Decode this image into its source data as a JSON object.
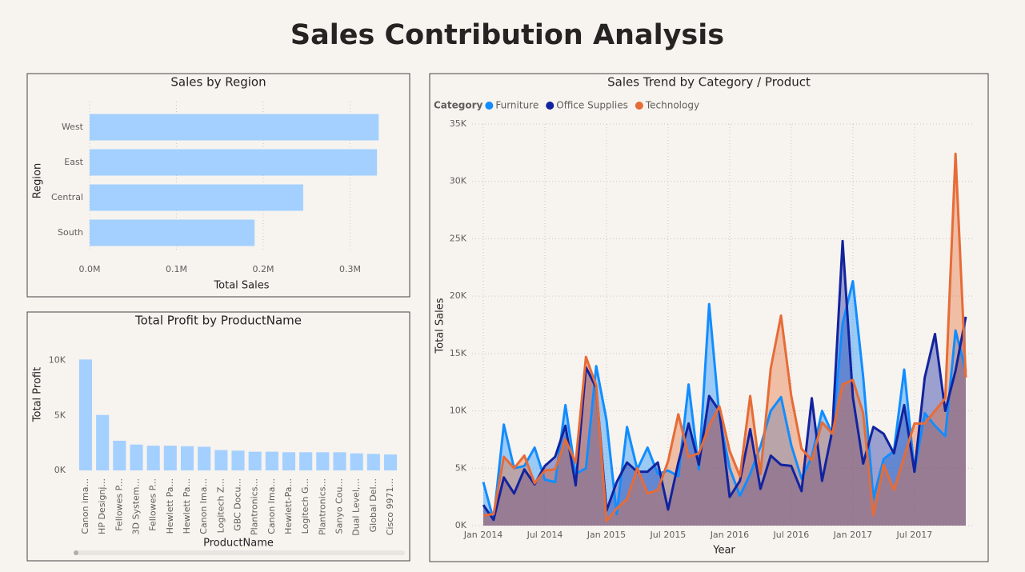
{
  "title": "Sales Contribution Analysis",
  "chart_data": [
    {
      "type": "bar",
      "orientation": "horizontal",
      "title": "Sales by Region",
      "x_label": "Total Sales",
      "y_label": "Region",
      "categories": [
        "West",
        "East",
        "Central",
        "South"
      ],
      "values": [
        333000,
        331000,
        246000,
        190000
      ],
      "color": "#a3d0ff",
      "grid": true,
      "xlim": [
        0,
        360000
      ],
      "xticks": [
        {
          "value": 0,
          "label": "0.0M"
        },
        {
          "value": 100000,
          "label": "0.1M"
        },
        {
          "value": 200000,
          "label": "0.2M"
        },
        {
          "value": 300000,
          "label": "0.3M"
        }
      ]
    },
    {
      "type": "bar",
      "orientation": "vertical",
      "title": "Total Profit by ProductName",
      "x_label": "ProductName",
      "y_label": "Total Profit",
      "categories": [
        "Canon ima...",
        "HP Designj...",
        "Fellowes P...",
        "3D System...",
        "Fellowes P...",
        "Hewlett Pa...",
        "Hewlett Pa...",
        "Canon Ima...",
        "Logitech Z...",
        "GBC Docu...",
        "Plantronics...",
        "Canon Ima...",
        "Hewlett-Pa...",
        "Logitech G...",
        "Plantronics...",
        "Sanyo Cou...",
        "Dual Level,...",
        "Global Del...",
        "Cisco 9971..."
      ],
      "values": [
        10100,
        5050,
        2700,
        2350,
        2250,
        2250,
        2200,
        2150,
        1850,
        1800,
        1700,
        1700,
        1650,
        1650,
        1650,
        1650,
        1550,
        1500,
        1450
      ],
      "color": "#a3d0ff",
      "grid": false,
      "ylim": [
        0,
        11000
      ],
      "yticks": [
        {
          "value": 0,
          "label": "0K"
        },
        {
          "value": 5000,
          "label": "5K"
        },
        {
          "value": 10000,
          "label": "10K"
        }
      ]
    },
    {
      "type": "area",
      "title": "Sales Trend by Category / Product",
      "x_label": "Year",
      "y_label": "Total Sales",
      "legend_title": "Category",
      "grid": true,
      "x": [
        "2014-01",
        "2014-02",
        "2014-03",
        "2014-04",
        "2014-05",
        "2014-06",
        "2014-07",
        "2014-08",
        "2014-09",
        "2014-10",
        "2014-11",
        "2014-12",
        "2015-01",
        "2015-02",
        "2015-03",
        "2015-04",
        "2015-05",
        "2015-06",
        "2015-07",
        "2015-08",
        "2015-09",
        "2015-10",
        "2015-11",
        "2015-12",
        "2016-01",
        "2016-02",
        "2016-03",
        "2016-04",
        "2016-05",
        "2016-06",
        "2016-07",
        "2016-08",
        "2016-09",
        "2016-10",
        "2016-11",
        "2016-12",
        "2017-01",
        "2017-02",
        "2017-03",
        "2017-04",
        "2017-05",
        "2017-06",
        "2017-07",
        "2017-08",
        "2017-09",
        "2017-10",
        "2017-11",
        "2017-12"
      ],
      "xticks": [
        {
          "value": "2014-01",
          "label": "Jan 2014"
        },
        {
          "value": "2014-07",
          "label": "Jul 2014"
        },
        {
          "value": "2015-01",
          "label": "Jan 2015"
        },
        {
          "value": "2015-07",
          "label": "Jul 2015"
        },
        {
          "value": "2016-01",
          "label": "Jan 2016"
        },
        {
          "value": "2016-07",
          "label": "Jul 2016"
        },
        {
          "value": "2017-01",
          "label": "Jan 2017"
        },
        {
          "value": "2017-07",
          "label": "Jul 2017"
        }
      ],
      "ylim": [
        0,
        35000
      ],
      "yticks": [
        {
          "value": 0,
          "label": "0K"
        },
        {
          "value": 5000,
          "label": "5K"
        },
        {
          "value": 10000,
          "label": "10K"
        },
        {
          "value": 15000,
          "label": "15K"
        },
        {
          "value": 20000,
          "label": "20K"
        },
        {
          "value": 25000,
          "label": "25K"
        },
        {
          "value": 30000,
          "label": "30K"
        },
        {
          "value": 35000,
          "label": "35K"
        }
      ],
      "series": [
        {
          "name": "Furniture",
          "color": "#118dff",
          "values": [
            3800,
            500,
            8800,
            5000,
            5200,
            6800,
            4000,
            3800,
            10500,
            4500,
            5000,
            13900,
            9200,
            1000,
            8600,
            4900,
            6800,
            4500,
            4800,
            4300,
            12300,
            4900,
            19300,
            9500,
            5000,
            2600,
            4500,
            6900,
            10000,
            11200,
            7000,
            4100,
            6000,
            10000,
            8000,
            17600,
            21300,
            13000,
            2400,
            5800,
            6500,
            13600,
            4700,
            9800,
            8700,
            7800,
            17000,
            13500
          ]
        },
        {
          "name": "Office Supplies",
          "color": "#12239e",
          "values": [
            1800,
            500,
            4200,
            2800,
            4900,
            3600,
            5200,
            6000,
            8700,
            3500,
            13800,
            12000,
            1300,
            3800,
            5500,
            4700,
            4700,
            5500,
            1400,
            5500,
            8900,
            5300,
            11300,
            10000,
            2500,
            3900,
            8400,
            3200,
            6100,
            5300,
            5200,
            3000,
            11100,
            3900,
            8300,
            24800,
            11200,
            5400,
            8600,
            8000,
            6300,
            10500,
            4700,
            12900,
            16700,
            10000,
            13500,
            18200
          ]
        },
        {
          "name": "Technology",
          "color": "#e66c37",
          "values": [
            900,
            1000,
            6000,
            5000,
            6100,
            3700,
            4800,
            4900,
            7500,
            5500,
            14700,
            12200,
            400,
            1500,
            2300,
            5000,
            2800,
            3100,
            5600,
            9700,
            6000,
            6300,
            8700,
            10400,
            6500,
            4300,
            11300,
            4500,
            13700,
            18300,
            11300,
            6700,
            5700,
            9000,
            8000,
            12300,
            12700,
            9800,
            900,
            5300,
            3100,
            6000,
            8900,
            8900,
            10000,
            11100,
            32400,
            12900
          ]
        }
      ]
    }
  ]
}
